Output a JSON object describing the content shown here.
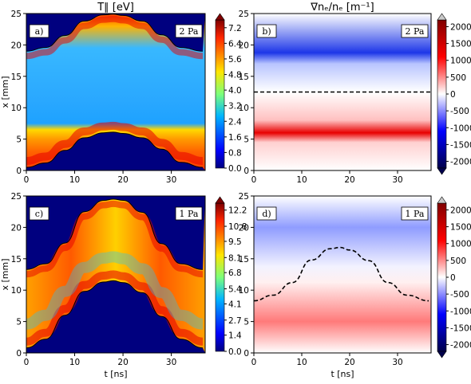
{
  "titles": {
    "left": "T∥ [eV]",
    "right": "∇nₑ/nₑ [m⁻¹]"
  },
  "chart_data": [
    {
      "type": "heatmap",
      "panel": "a)",
      "pressure_label": "2 Pa",
      "colormap": "jet",
      "title": "T∥ [eV]",
      "xlabel": "",
      "ylabel": "x [mm]",
      "xlim": [
        0,
        37
      ],
      "ylim": [
        0,
        25
      ],
      "xticks": [
        "0",
        "10",
        "20",
        "30"
      ],
      "yticks": [
        "0",
        "5",
        "10",
        "15",
        "20",
        "25"
      ],
      "colorbar": {
        "ticks": [
          "0.0",
          "0.8",
          "1.6",
          "2.4",
          "3.2",
          "4.0",
          "4.8",
          "5.6",
          "6.4",
          "7.2"
        ],
        "range": [
          0,
          7.6
        ]
      },
      "sheath_edge_lower_mm": {
        "t_ns": [
          0,
          4,
          8,
          12,
          16,
          18,
          20,
          24,
          28,
          32,
          36.5
        ],
        "x": [
          0.5,
          1.2,
          3.2,
          5.2,
          6.0,
          6.1,
          5.9,
          5.2,
          3.4,
          1.3,
          0.5
        ]
      },
      "sheath_edge_upper_mm": {
        "t_ns": [
          0,
          4,
          8,
          12,
          16,
          18,
          20,
          24,
          28,
          32,
          36.5
        ],
        "x": [
          19,
          19.6,
          21.5,
          23.8,
          24.8,
          24.9,
          24.7,
          23.8,
          21.6,
          19.6,
          19
        ]
      }
    },
    {
      "type": "heatmap",
      "panel": "b)",
      "pressure_label": "2 Pa",
      "colormap": "seismic",
      "title": "∇nₑ/nₑ [m⁻¹]",
      "xlabel": "",
      "ylabel": "",
      "xlim": [
        0,
        37
      ],
      "ylim": [
        0,
        25
      ],
      "xticks": [
        "0",
        "10",
        "20",
        "30"
      ],
      "yticks": [
        "0",
        "5",
        "10",
        "15",
        "20",
        "25"
      ],
      "colorbar": {
        "ticks": [
          "2000",
          "1500",
          "1000",
          "500",
          "0",
          "-500",
          "-1000",
          "-1500",
          "-2000"
        ],
        "range": [
          -2200,
          2200
        ]
      },
      "zero_gradient_line_mm": 12.5
    },
    {
      "type": "heatmap",
      "panel": "c)",
      "pressure_label": "1 Pa",
      "colormap": "jet",
      "title": "",
      "xlabel": "t [ns]",
      "ylabel": "x [mm]",
      "xlim": [
        0,
        37
      ],
      "ylim": [
        0,
        25
      ],
      "xticks": [
        "0",
        "10",
        "20",
        "30"
      ],
      "yticks": [
        "0",
        "5",
        "10",
        "15",
        "20",
        "25"
      ],
      "colorbar": {
        "ticks": [
          "0.0",
          "1.4",
          "2.7",
          "4.1",
          "5.4",
          "6.8",
          "8.1",
          "9.5",
          "10.8",
          "12.2"
        ],
        "range": [
          0,
          12.8
        ]
      },
      "sheath_edge_lower_mm": {
        "t_ns": [
          0,
          4,
          8,
          12,
          16,
          18,
          20,
          24,
          28,
          32,
          36.5
        ],
        "x": [
          0.8,
          2.2,
          6.0,
          9.8,
          11.3,
          11.5,
          11.2,
          9.6,
          5.8,
          2.2,
          0.8
        ]
      },
      "sheath_edge_upper_mm": {
        "t_ns": [
          0,
          4,
          8,
          12,
          16,
          18,
          20,
          24,
          28,
          32,
          36.5
        ],
        "x": [
          13.3,
          14.2,
          17.5,
          22.5,
          24.3,
          24.5,
          24.3,
          22.4,
          17.4,
          14.2,
          13.3
        ]
      }
    },
    {
      "type": "heatmap",
      "panel": "d)",
      "pressure_label": "1 Pa",
      "colormap": "seismic",
      "title": "",
      "xlabel": "t [ns]",
      "ylabel": "",
      "xlim": [
        0,
        37
      ],
      "ylim": [
        0,
        25
      ],
      "xticks": [
        "0",
        "10",
        "20",
        "30"
      ],
      "yticks": [
        "0",
        "5",
        "10",
        "15",
        "20",
        "25"
      ],
      "colorbar": {
        "ticks": [
          "2000",
          "1500",
          "1000",
          "500",
          "0",
          "-500",
          "-1000",
          "-1500",
          "-2000"
        ],
        "range": [
          -2200,
          2200
        ]
      },
      "zero_gradient_line_mm": {
        "t_ns": [
          0,
          4,
          8,
          12,
          16,
          18,
          20,
          24,
          28,
          32,
          36.5
        ],
        "x": [
          8.3,
          9.2,
          11.2,
          14.8,
          16.6,
          16.8,
          16.4,
          14.7,
          11.2,
          9.2,
          8.3
        ]
      }
    }
  ],
  "units": {
    "time_axis": "t [ns]",
    "space_axis": "x [mm]"
  }
}
